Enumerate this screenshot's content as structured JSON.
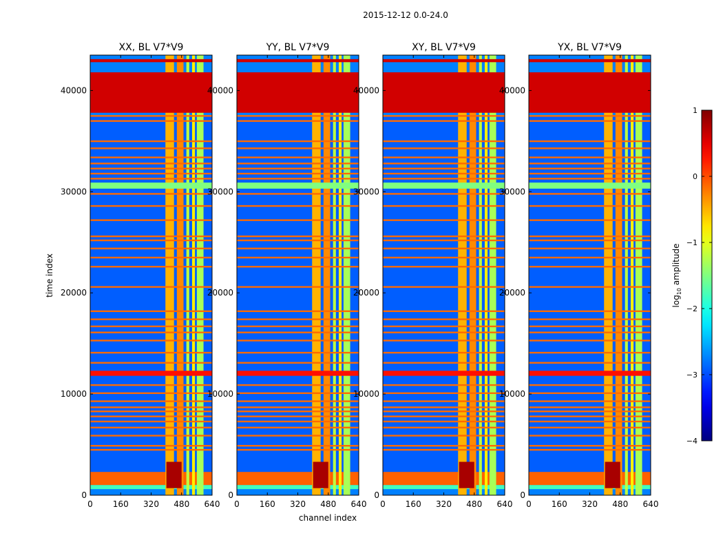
{
  "figure": {
    "suptitle": "2015-12-12 0.0-24.0",
    "ylabel": "time index",
    "xlabel": "channel index"
  },
  "chart_data": {
    "type": "heatmap",
    "title": "2015-12-12 0.0-24.0",
    "xlabel": "channel index",
    "ylabel": "time index",
    "xlim": [
      0,
      640
    ],
    "ylim": [
      0,
      43500
    ],
    "xticks": [
      0,
      160,
      320,
      480,
      640
    ],
    "yticks": [
      0,
      10000,
      20000,
      30000,
      40000
    ],
    "panels": [
      {
        "title": "XX, BL V7*V9"
      },
      {
        "title": "YY, BL V7*V9"
      },
      {
        "title": "XY, BL V7*V9"
      },
      {
        "title": "YX, BL V7*V9"
      }
    ],
    "colorbar": {
      "label": "log10 amplitude",
      "label_main": "log",
      "label_sub": "10",
      "label_tail": " amplitude",
      "range": [
        -4,
        1
      ],
      "ticks": [
        1,
        0,
        -1,
        -2,
        -3,
        -4
      ],
      "tick_labels": [
        "1",
        "0",
        "−1",
        "−2",
        "−3",
        "−4"
      ],
      "colormap": "jet"
    },
    "masked_blocks": [
      {
        "t_start": 37800,
        "t_end": 41800,
        "value": 0.6
      },
      {
        "t_start": 42800,
        "t_end": 43100,
        "value": 0.6
      },
      {
        "t_start": 30300,
        "t_end": 30900,
        "value": -1.5
      },
      {
        "t_start": 11800,
        "t_end": 12300,
        "value": 0.3
      }
    ],
    "flag_rows": [
      4500,
      4900,
      5900,
      6700,
      7300,
      7800,
      8300,
      8700,
      9300,
      10100,
      10900,
      13100,
      14100,
      15300,
      16100,
      16700,
      17400,
      18200,
      20600,
      22600,
      23500,
      24400,
      25200,
      25600,
      27200,
      28600,
      29800,
      31300,
      31800,
      32300,
      32800,
      33400,
      34300,
      35000,
      37000,
      37500
    ],
    "bright_channels": [
      [
        395,
        440,
        -0.5
      ],
      [
        455,
        490,
        -0.3
      ],
      [
        505,
        520,
        -1.2
      ],
      [
        535,
        550,
        -0.8
      ],
      [
        560,
        595,
        -1.3
      ]
    ],
    "rfi_bands": [
      [
        1000,
        2300,
        -0.1
      ],
      [
        600,
        1000,
        -1.8
      ]
    ],
    "colors": {
      "flag": "#ff6a00",
      "flag_block": "#ff6a00",
      "band_cyan": "#6cf3a0"
    }
  }
}
